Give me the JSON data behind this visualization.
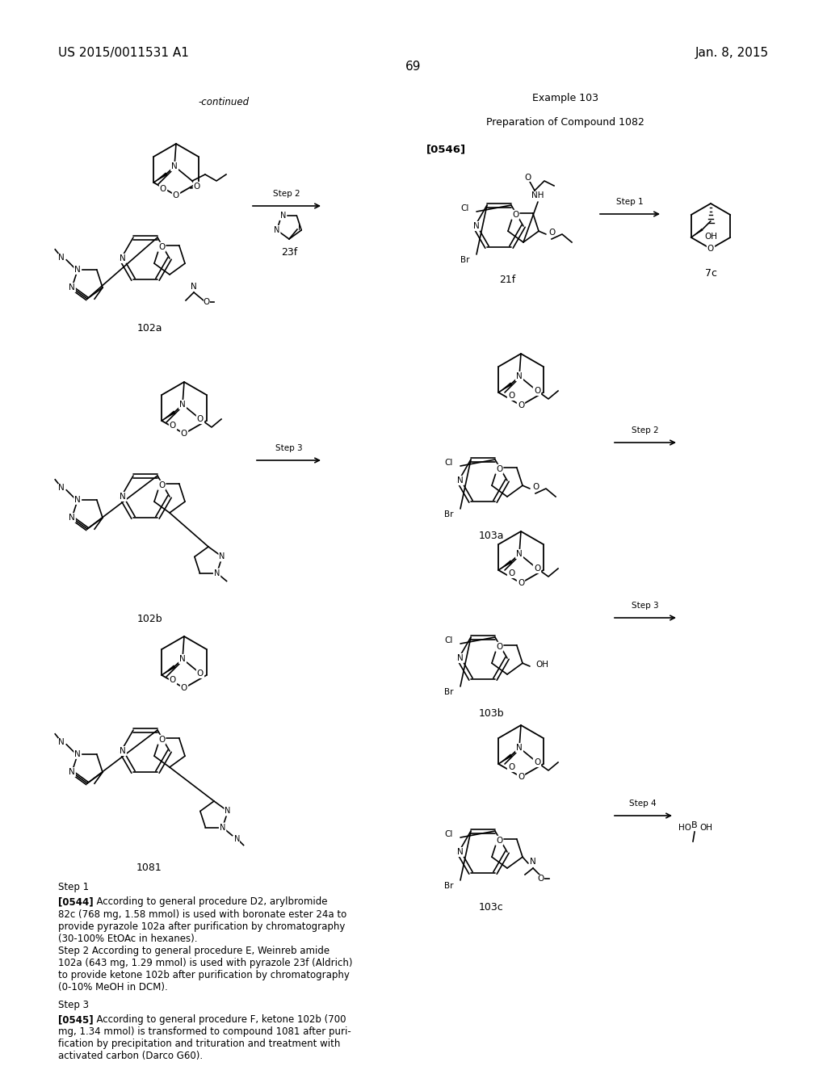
{
  "background_color": "#ffffff",
  "page_width": 10.24,
  "page_height": 13.2,
  "header_left": "US 2015/0011531 A1",
  "header_right": "Jan. 8, 2015",
  "page_number": "69",
  "left_section_title": "-continued",
  "right_section_title": "Example 103",
  "right_section_subtitle": "Preparation of Compound 1082",
  "right_section_tag": "[0546]",
  "font_color": "#000000",
  "font_size_header": 11,
  "font_size_body": 8.5,
  "font_size_label": 9,
  "font_size_page_num": 11
}
